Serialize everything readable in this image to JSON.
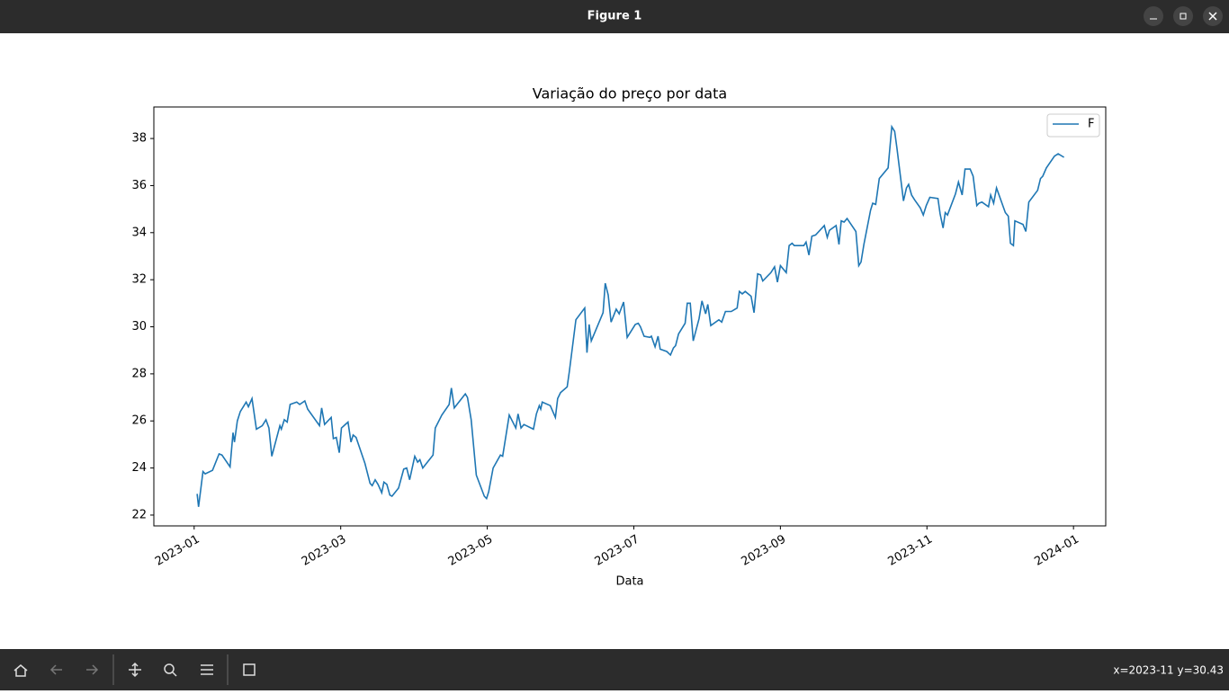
{
  "window": {
    "title": "Figure 1",
    "status": "x=2023-11 y=30.43"
  },
  "chart_data": {
    "type": "line",
    "title": "Variação do preço por data",
    "x_label": "Data",
    "legend": "upper right",
    "grid": false,
    "xlim": [
      -0.55,
      12.44
    ],
    "ylim": [
      21.54,
      39.34
    ],
    "xticks": [
      {
        "value": 0,
        "label": "2023-01"
      },
      {
        "value": 2,
        "label": "2023-03"
      },
      {
        "value": 4,
        "label": "2023-05"
      },
      {
        "value": 6,
        "label": "2023-07"
      },
      {
        "value": 8,
        "label": "2023-09"
      },
      {
        "value": 10,
        "label": "2023-11"
      },
      {
        "value": 12,
        "label": "2024-01"
      }
    ],
    "yticks": [
      22,
      24,
      26,
      28,
      30,
      32,
      34,
      36,
      38
    ],
    "series": [
      {
        "name": "F",
        "color": "#1f77b4",
        "x": [
          0.04,
          0.06,
          0.12,
          0.15,
          0.25,
          0.34,
          0.38,
          0.49,
          0.53,
          0.55,
          0.59,
          0.63,
          0.71,
          0.74,
          0.79,
          0.85,
          0.93,
          0.98,
          1.02,
          1.06,
          1.17,
          1.19,
          1.23,
          1.27,
          1.31,
          1.4,
          1.44,
          1.51,
          1.55,
          1.71,
          1.74,
          1.78,
          1.87,
          1.9,
          1.94,
          1.98,
          2.01,
          2.1,
          2.14,
          2.17,
          2.21,
          2.33,
          2.4,
          2.43,
          2.47,
          2.51,
          2.56,
          2.59,
          2.63,
          2.67,
          2.7,
          2.79,
          2.86,
          2.9,
          2.94,
          3.01,
          3.05,
          3.08,
          3.12,
          3.26,
          3.29,
          3.38,
          3.48,
          3.51,
          3.55,
          3.7,
          3.73,
          3.78,
          3.85,
          3.96,
          3.99,
          4.02,
          4.08,
          4.18,
          4.21,
          4.3,
          4.39,
          4.42,
          4.46,
          4.5,
          4.63,
          4.67,
          4.71,
          4.73,
          4.75,
          4.86,
          4.93,
          4.96,
          5.0,
          5.09,
          5.12,
          5.21,
          5.33,
          5.36,
          5.39,
          5.42,
          5.58,
          5.61,
          5.65,
          5.69,
          5.76,
          5.8,
          5.86,
          5.91,
          6.02,
          6.06,
          6.09,
          6.14,
          6.22,
          6.24,
          6.29,
          6.33,
          6.36,
          6.45,
          6.5,
          6.54,
          6.57,
          6.61,
          6.7,
          6.73,
          6.77,
          6.81,
          6.89,
          6.93,
          6.98,
          7.01,
          7.05,
          7.16,
          7.2,
          7.25,
          7.33,
          7.41,
          7.44,
          7.48,
          7.52,
          7.6,
          7.64,
          7.69,
          7.73,
          7.76,
          7.87,
          7.92,
          7.96,
          8.0,
          8.08,
          8.12,
          8.16,
          8.19,
          8.32,
          8.35,
          8.39,
          8.43,
          8.48,
          8.6,
          8.64,
          8.67,
          8.76,
          8.8,
          8.83,
          8.87,
          8.91,
          9.03,
          9.07,
          9.1,
          9.14,
          9.23,
          9.26,
          9.3,
          9.35,
          9.47,
          9.52,
          9.56,
          9.59,
          9.68,
          9.72,
          9.75,
          9.79,
          9.83,
          9.91,
          9.95,
          9.99,
          10.04,
          10.15,
          10.18,
          10.22,
          10.25,
          10.28,
          10.39,
          10.43,
          10.48,
          10.52,
          10.59,
          10.63,
          10.68,
          10.71,
          10.75,
          10.84,
          10.87,
          10.91,
          10.95,
          11.07,
          11.11,
          11.14,
          11.18,
          11.2,
          11.31,
          11.35,
          11.39,
          11.51,
          11.55,
          11.58,
          11.63,
          11.74,
          11.79,
          11.87
        ],
        "values": [
          22.9,
          22.35,
          23.85,
          23.75,
          23.9,
          24.6,
          24.55,
          24.05,
          25.5,
          25.1,
          26.0,
          26.4,
          26.8,
          26.6,
          26.95,
          25.65,
          25.8,
          26.05,
          25.7,
          24.5,
          25.8,
          25.65,
          26.05,
          25.95,
          26.7,
          26.8,
          26.7,
          26.85,
          26.5,
          25.8,
          26.55,
          25.85,
          26.15,
          25.25,
          25.3,
          24.65,
          25.7,
          25.95,
          25.1,
          25.4,
          25.3,
          24.2,
          23.35,
          23.25,
          23.5,
          23.3,
          22.95,
          23.4,
          23.3,
          22.85,
          22.8,
          23.15,
          23.95,
          24.0,
          23.5,
          24.5,
          24.25,
          24.35,
          24.0,
          24.55,
          25.7,
          26.25,
          26.7,
          27.4,
          26.55,
          27.15,
          27.0,
          26.05,
          23.7,
          22.8,
          22.7,
          23.0,
          24.0,
          24.55,
          24.5,
          26.25,
          25.7,
          26.3,
          25.7,
          25.85,
          25.65,
          26.3,
          26.65,
          26.5,
          26.8,
          26.65,
          26.15,
          26.95,
          27.2,
          27.45,
          28.1,
          30.3,
          30.8,
          28.9,
          30.1,
          29.4,
          30.6,
          31.85,
          31.35,
          30.2,
          30.75,
          30.55,
          31.05,
          29.55,
          30.1,
          30.15,
          30.0,
          29.6,
          29.55,
          29.6,
          29.15,
          29.6,
          29.05,
          28.95,
          28.8,
          29.1,
          29.2,
          29.7,
          30.15,
          31.0,
          31.0,
          29.4,
          30.35,
          31.1,
          30.55,
          30.95,
          30.05,
          30.3,
          30.2,
          30.65,
          30.65,
          30.8,
          31.5,
          31.4,
          31.5,
          31.3,
          30.6,
          32.25,
          32.2,
          31.95,
          32.3,
          32.55,
          31.9,
          32.6,
          32.3,
          33.45,
          33.55,
          33.45,
          33.45,
          33.6,
          33.05,
          33.85,
          33.9,
          34.3,
          33.8,
          34.1,
          34.3,
          33.5,
          34.5,
          34.45,
          34.6,
          34.05,
          32.6,
          32.75,
          33.5,
          34.95,
          35.25,
          35.2,
          36.3,
          36.75,
          38.5,
          38.3,
          37.6,
          35.35,
          35.9,
          36.05,
          35.6,
          35.4,
          35.05,
          34.75,
          35.15,
          35.5,
          35.45,
          34.8,
          34.2,
          34.85,
          34.75,
          35.65,
          36.15,
          35.6,
          36.7,
          36.7,
          36.4,
          35.15,
          35.25,
          35.3,
          35.1,
          35.6,
          35.25,
          35.9,
          34.85,
          34.7,
          33.55,
          33.45,
          34.5,
          34.35,
          34.05,
          35.3,
          35.8,
          36.3,
          36.4,
          36.75,
          37.25,
          37.35,
          37.2
        ]
      }
    ]
  }
}
